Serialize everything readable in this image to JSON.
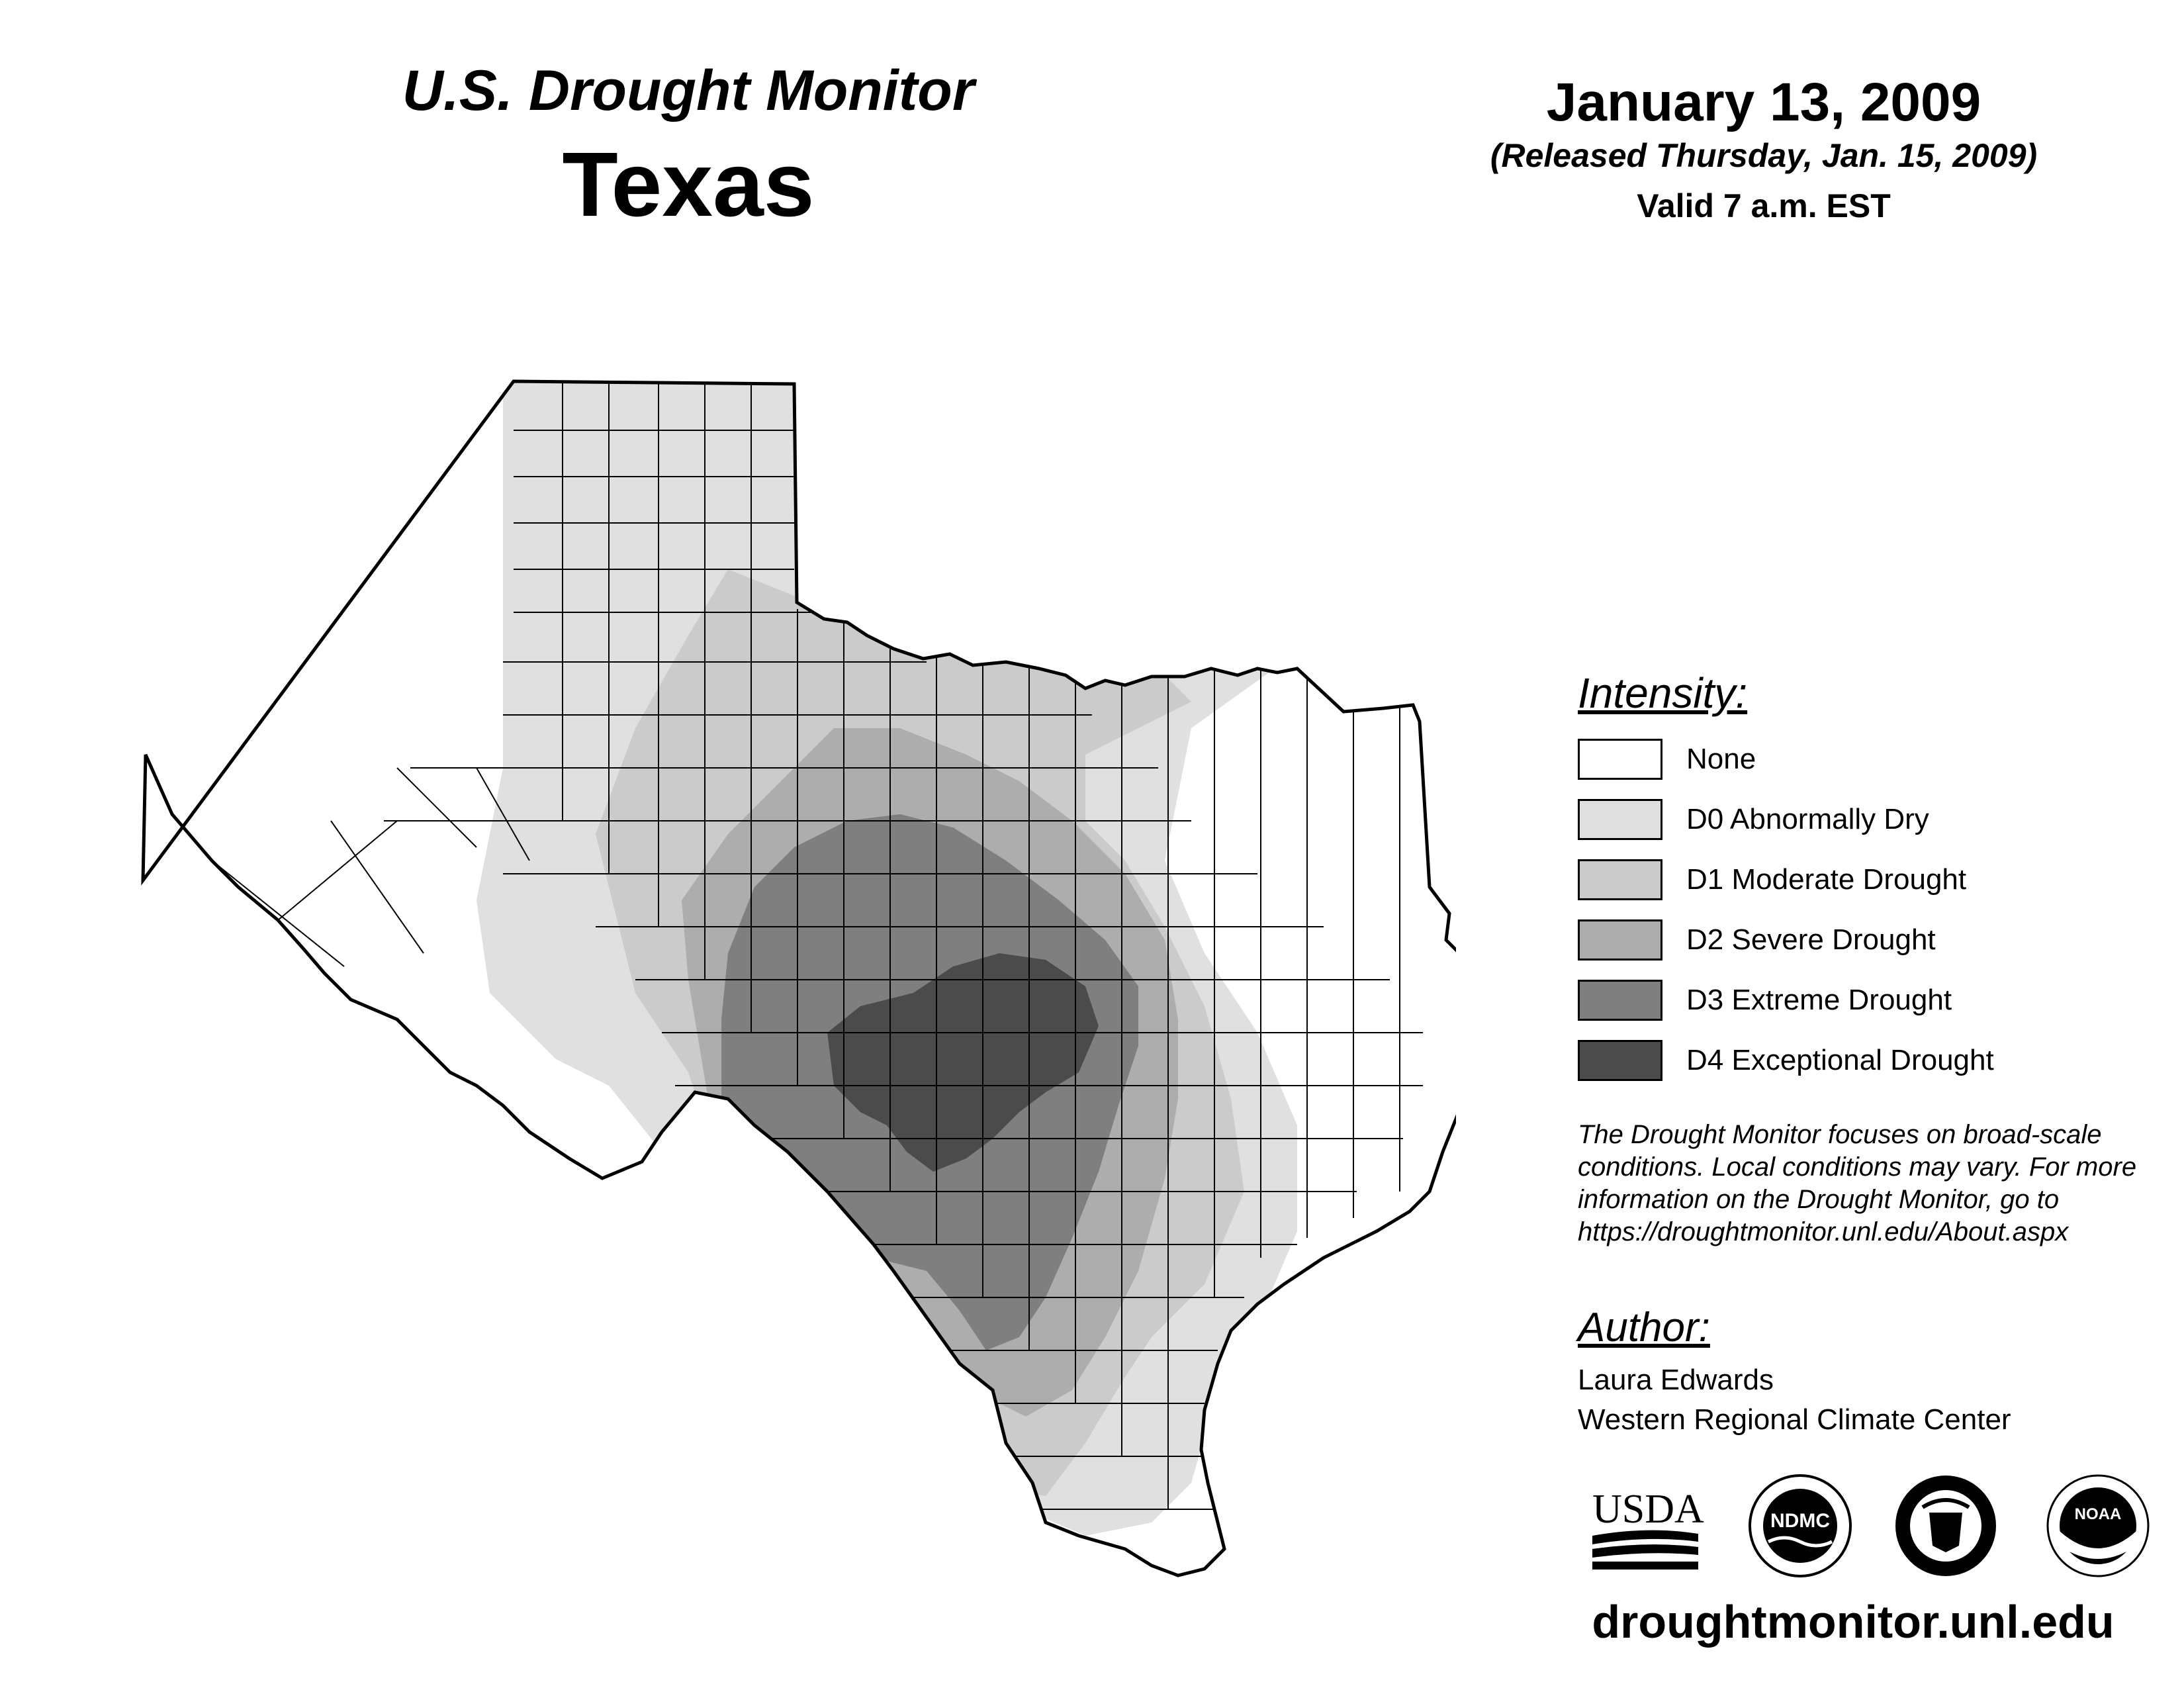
{
  "header": {
    "title_line1": "U.S. Drought Monitor",
    "title_line2": "Texas",
    "date": "January 13, 2009",
    "released": "(Released Thursday, Jan. 15, 2009)",
    "valid": "Valid 7 a.m. EST"
  },
  "legend": {
    "heading": "Intensity:",
    "items": [
      {
        "label": "None",
        "color": "#ffffff"
      },
      {
        "label": "D0 Abnormally Dry",
        "color": "#e0e0e0"
      },
      {
        "label": "D1 Moderate Drought",
        "color": "#cbcbcb"
      },
      {
        "label": "D2 Severe Drought",
        "color": "#adadad"
      },
      {
        "label": "D3 Extreme Drought",
        "color": "#7f7f7f"
      },
      {
        "label": "D4 Exceptional Drought",
        "color": "#4b4b4b"
      }
    ]
  },
  "note": "The Drought Monitor focuses on broad-scale conditions. Local conditions may vary. For more information on the Drought Monitor, go to https://droughtmonitor.unl.edu/About.aspx",
  "author": {
    "heading": "Author:",
    "name": "Laura Edwards",
    "organization": "Western Regional Climate Center"
  },
  "logos": {
    "usda": "USDA",
    "ndmc": "NDMC",
    "commerce_icon": "department-of-commerce-seal-icon",
    "noaa": "NOAA"
  },
  "website": "droughtmonitor.unl.edu"
}
